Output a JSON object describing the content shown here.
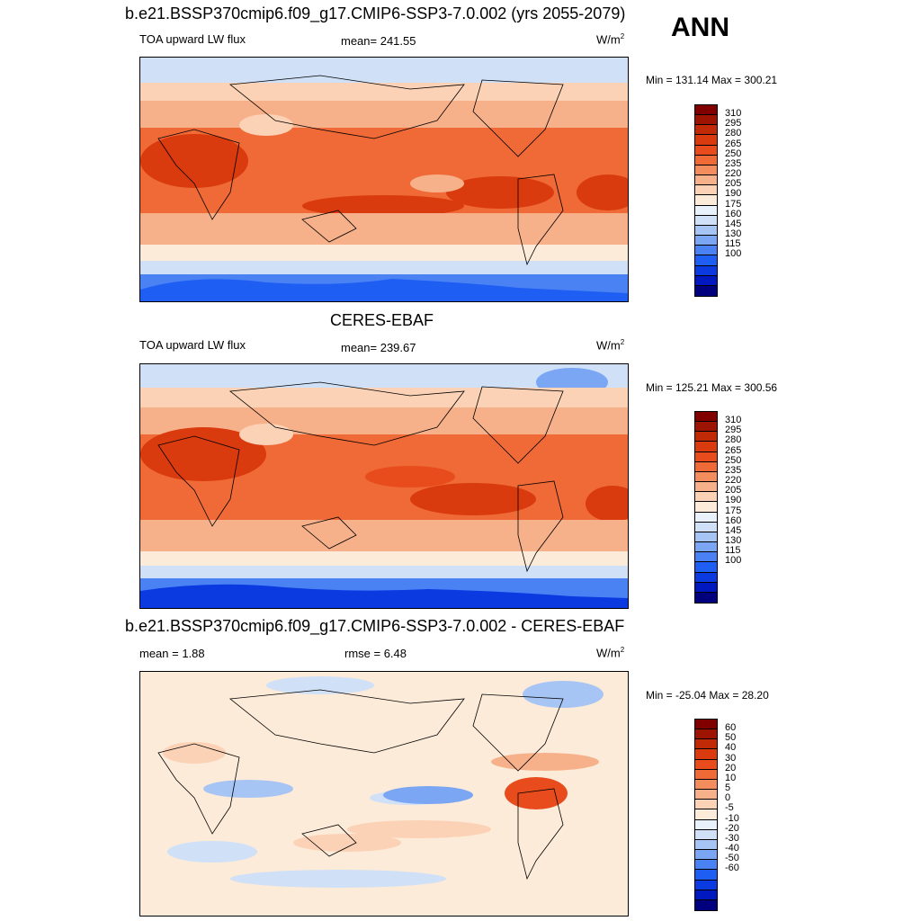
{
  "season": "ANN",
  "colors": {
    "abs_scale": [
      "#00007f",
      "#0018bf",
      "#0a3ae0",
      "#1f5ef2",
      "#4a82f4",
      "#7aa6f4",
      "#a6c4f4",
      "#cfe0f7",
      "#e9f2fb",
      "#fdebd9",
      "#fbd2b6",
      "#f7b18a",
      "#f48d5e",
      "#ef6a36",
      "#e84c1d",
      "#d93a0e",
      "#c02a07",
      "#9e1403",
      "#800000"
    ],
    "diff_scale": [
      "#00007f",
      "#0018bf",
      "#0a3ae0",
      "#1f5ef2",
      "#4a82f4",
      "#7aa6f4",
      "#a6c4f4",
      "#cfe0f7",
      "#e9f2fb",
      "#fdebd9",
      "#fbd2b6",
      "#f7b18a",
      "#f48d5e",
      "#ef6a36",
      "#e84c1d",
      "#d93a0e",
      "#c02a07",
      "#9e1403",
      "#800000"
    ]
  },
  "panels": [
    {
      "title": "b.e21.BSSP370cmip6.f09_g17.CMIP6-SSP3-7.0.002 (yrs 2055-2079)",
      "left_label": "TOA upward LW flux",
      "mid_label": "mean= 241.55",
      "units_base": "W/m",
      "units_exp": "2",
      "minmax": "Min = 131.14 Max = 300.21"
    },
    {
      "title": "CERES-EBAF",
      "left_label": "TOA upward LW flux",
      "mid_label": "mean= 239.67",
      "units_base": "W/m",
      "units_exp": "2",
      "minmax": "Min = 125.21 Max = 300.56"
    },
    {
      "title": "b.e21.BSSP370cmip6.f09_g17.CMIP6-SSP3-7.0.002 - CERES-EBAF",
      "left_label": "mean =   1.88",
      "mid_label": "rmse =   6.48",
      "units_base": "W/m",
      "units_exp": "2",
      "minmax": "Min = -25.04 Max =  28.20"
    }
  ],
  "chart_data": [
    {
      "type": "heatmap",
      "title": "b.e21.BSSP370cmip6.f09_g17.CMIP6-SSP3-7.0.002 (yrs 2055-2079)",
      "variable": "TOA upward LW flux",
      "units": "W/m2",
      "mean": 241.55,
      "min": 131.14,
      "max": 300.21,
      "colorbar_levels": [
        310,
        295,
        280,
        265,
        250,
        235,
        220,
        205,
        190,
        175,
        160,
        145,
        130,
        115,
        100
      ]
    },
    {
      "type": "heatmap",
      "title": "CERES-EBAF",
      "variable": "TOA upward LW flux",
      "units": "W/m2",
      "mean": 239.67,
      "min": 125.21,
      "max": 300.56,
      "colorbar_levels": [
        310,
        295,
        280,
        265,
        250,
        235,
        220,
        205,
        190,
        175,
        160,
        145,
        130,
        115,
        100
      ]
    },
    {
      "type": "heatmap",
      "title": "b.e21.BSSP370cmip6.f09_g17.CMIP6-SSP3-7.0.002 - CERES-EBAF",
      "units": "W/m2",
      "mean": 1.88,
      "rmse": 6.48,
      "min": -25.04,
      "max": 28.2,
      "colorbar_levels": [
        60,
        50,
        40,
        30,
        20,
        10,
        5,
        0,
        -5,
        -10,
        -20,
        -30,
        -40,
        -50,
        -60
      ]
    }
  ]
}
